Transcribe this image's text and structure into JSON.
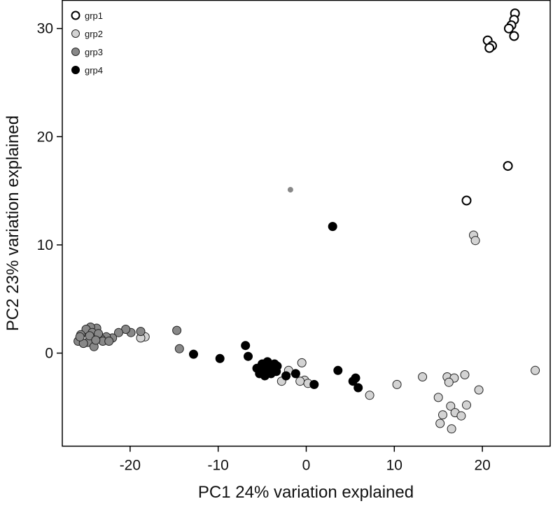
{
  "chart_data": {
    "type": "scatter",
    "title": "",
    "xlabel": "PC1 24% variation explained",
    "ylabel": "PC2 23% variation explained",
    "xlim": [
      -27.7,
      27.7
    ],
    "ylim": [
      -8.6,
      32.6
    ],
    "xticks": [
      -20,
      -10,
      0,
      10,
      20
    ],
    "yticks": [
      0,
      10,
      20,
      30
    ],
    "grid": false,
    "legend_position": "top-left",
    "series": [
      {
        "name": "grp1",
        "fill": "#ffffff",
        "stroke": "#000000",
        "points": [
          [
            23.7,
            31.4
          ],
          [
            23.6,
            30.8
          ],
          [
            23.3,
            30.3
          ],
          [
            23.0,
            30.0
          ],
          [
            23.6,
            29.3
          ],
          [
            20.6,
            28.9
          ],
          [
            21.1,
            28.4
          ],
          [
            20.8,
            28.2
          ],
          [
            22.9,
            17.3
          ],
          [
            18.2,
            14.1
          ]
        ]
      },
      {
        "name": "grp2",
        "fill": "#d3d3d3",
        "stroke": "#222222",
        "points": [
          [
            19.0,
            10.9
          ],
          [
            19.2,
            10.4
          ],
          [
            26.0,
            -1.6
          ],
          [
            18.0,
            -2.0
          ],
          [
            16.0,
            -2.2
          ],
          [
            16.8,
            -2.3
          ],
          [
            13.2,
            -2.2
          ],
          [
            16.2,
            -2.7
          ],
          [
            19.6,
            -3.4
          ],
          [
            10.3,
            -2.9
          ],
          [
            7.2,
            -3.9
          ],
          [
            15.0,
            -4.1
          ],
          [
            18.2,
            -4.8
          ],
          [
            16.4,
            -4.9
          ],
          [
            15.5,
            -5.7
          ],
          [
            16.9,
            -5.5
          ],
          [
            17.6,
            -5.8
          ],
          [
            15.2,
            -6.5
          ],
          [
            16.5,
            -7.0
          ],
          [
            -0.2,
            -2.5
          ],
          [
            -0.7,
            -2.6
          ],
          [
            0.2,
            -2.8
          ],
          [
            -0.5,
            -0.9
          ],
          [
            -2.0,
            -1.6
          ],
          [
            -2.8,
            -2.6
          ],
          [
            -18.3,
            1.5
          ],
          [
            -18.8,
            1.4
          ]
        ]
      },
      {
        "name": "grp3",
        "fill": "#888888",
        "stroke": "#222222",
        "points": [
          [
            -1.8,
            15.1
          ],
          [
            -14.4,
            0.4
          ],
          [
            -14.7,
            2.1
          ],
          [
            -18.8,
            2.0
          ],
          [
            -19.9,
            1.9
          ],
          [
            -20.5,
            2.2
          ],
          [
            -21.3,
            1.9
          ],
          [
            -22.0,
            1.4
          ],
          [
            -22.7,
            1.5
          ],
          [
            -23.3,
            1.3
          ],
          [
            -23.8,
            2.3
          ],
          [
            -24.5,
            2.4
          ],
          [
            -25.0,
            2.2
          ],
          [
            -25.6,
            1.7
          ],
          [
            -25.9,
            1.1
          ],
          [
            -24.3,
            1.9
          ],
          [
            -23.6,
            1.8
          ],
          [
            -24.8,
            1.0
          ],
          [
            -25.3,
            0.9
          ],
          [
            -24.1,
            0.6
          ],
          [
            -23.1,
            1.1
          ],
          [
            -25.7,
            1.5
          ],
          [
            -24.6,
            1.6
          ],
          [
            -23.9,
            1.2
          ],
          [
            -22.4,
            1.1
          ]
        ]
      },
      {
        "name": "grp4",
        "fill": "#000000",
        "stroke": "#000000",
        "points": [
          [
            3.0,
            11.7
          ],
          [
            -6.9,
            0.7
          ],
          [
            -6.6,
            -0.3
          ],
          [
            -9.8,
            -0.5
          ],
          [
            -12.8,
            -0.1
          ],
          [
            -5.6,
            -1.4
          ],
          [
            -5.1,
            -1.2
          ],
          [
            -4.9,
            -1.7
          ],
          [
            -4.5,
            -1.1
          ],
          [
            -4.2,
            -1.6
          ],
          [
            -3.9,
            -1.3
          ],
          [
            -3.6,
            -1.0
          ],
          [
            -3.3,
            -1.2
          ],
          [
            -5.3,
            -1.9
          ],
          [
            -4.7,
            -2.1
          ],
          [
            -4.0,
            -1.9
          ],
          [
            -3.4,
            -1.7
          ],
          [
            -5.0,
            -1.0
          ],
          [
            -4.4,
            -0.8
          ],
          [
            -2.3,
            -2.1
          ],
          [
            -1.2,
            -1.9
          ],
          [
            0.9,
            -2.9
          ],
          [
            3.6,
            -1.6
          ],
          [
            5.3,
            -2.6
          ],
          [
            5.6,
            -2.3
          ],
          [
            5.9,
            -3.2
          ]
        ]
      }
    ]
  }
}
